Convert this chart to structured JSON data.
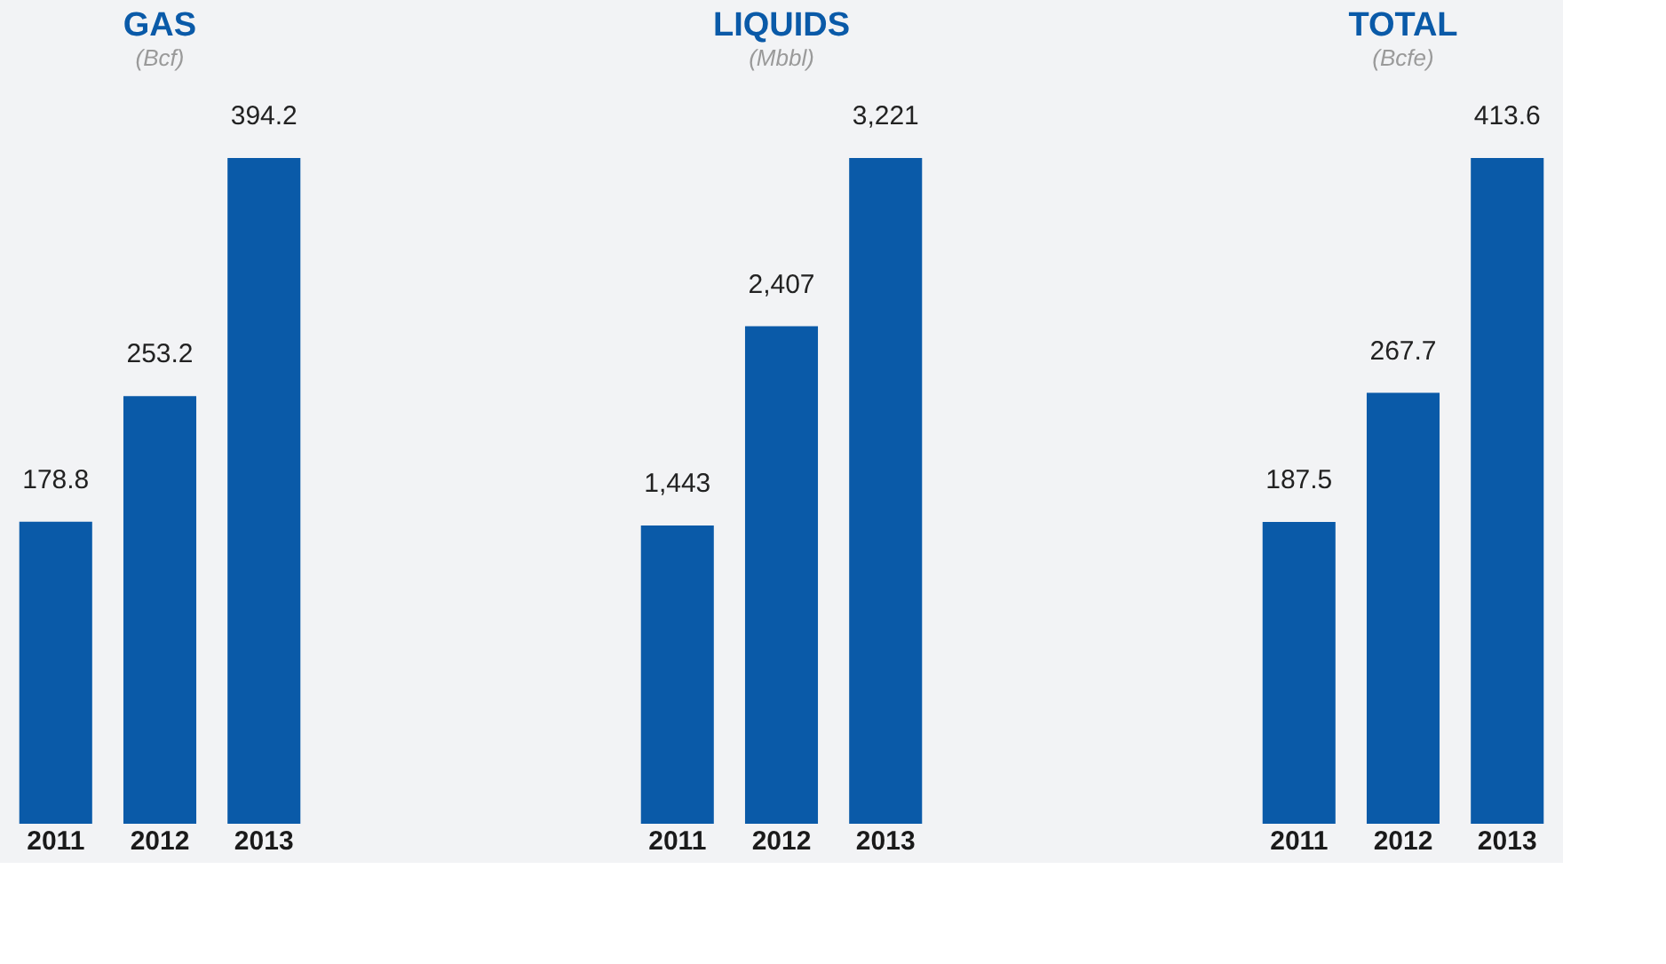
{
  "chart_data": [
    {
      "type": "bar",
      "title": "GAS",
      "subtitle": "(Bcf)",
      "categories": [
        "2011",
        "2012",
        "2013"
      ],
      "values": [
        178.8,
        253.2,
        394.2
      ],
      "color": "#0a5aa8",
      "data_labels": true,
      "tick_labels": "x"
    },
    {
      "type": "bar",
      "title": "LIQUIDS",
      "subtitle": "(Mbbl)",
      "categories": [
        "2011",
        "2012",
        "2013"
      ],
      "values": [
        1443,
        2407,
        3221
      ],
      "value_labels": [
        "1,443",
        "2,407",
        "3,221"
      ],
      "color": "#0a5aa8",
      "tick_labels": "x"
    },
    {
      "type": "bar",
      "title": "TOTAL",
      "subtitle": "(Bcfe)",
      "categories": [
        "2011",
        "2012",
        "2013"
      ],
      "values": [
        187.5,
        267.7,
        413.6
      ],
      "color": "#0a5aa8",
      "data_labels": true,
      "tick_labels": "x"
    }
  ]
}
